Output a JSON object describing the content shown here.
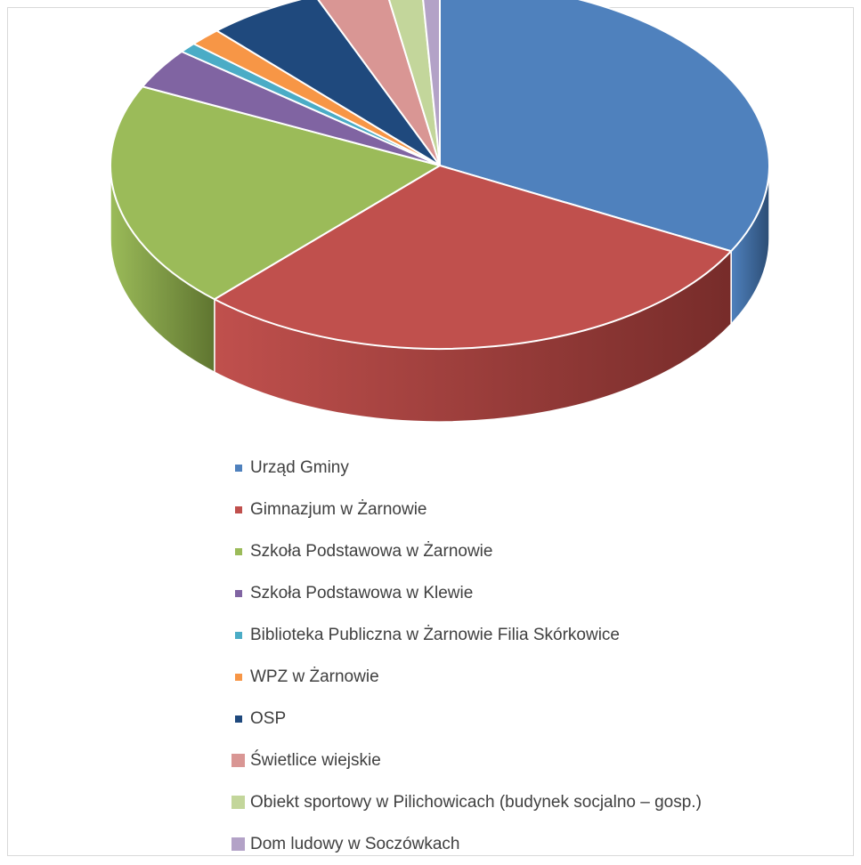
{
  "chart_data": {
    "type": "pie",
    "style": "3d",
    "title": "",
    "legend_position": "bottom",
    "slices": [
      {
        "label": "Urząd Gminy",
        "value": 32.9,
        "color": "#4F81BD",
        "side": "#2C4D75"
      },
      {
        "label": "Gimnazjum w Żarnowie",
        "value": 29.4,
        "color": "#C0504D",
        "side": "#772C2A"
      },
      {
        "label": "Szkoła Podstawowa w Żarnowie",
        "value": 20.2,
        "color": "#9BBB59",
        "side": "#5F7530"
      },
      {
        "label": "Szkoła Podstawowa w Klewie",
        "value": 3.6,
        "color": "#8064A2",
        "side": "#4D3B62"
      },
      {
        "label": "Biblioteka Publiczna w Żarnowie Filia Skórkowice",
        "value": 0.9,
        "color": "#4BACC6",
        "side": "#276A7C"
      },
      {
        "label": "WPZ w Żarnowie",
        "value": 1.6,
        "color": "#F79646",
        "side": "#B65708"
      },
      {
        "label": "OSP",
        "value": 5.7,
        "color": "#1F497D",
        "side": "#10253F"
      },
      {
        "label": "Świetlice wiejskie",
        "value": 3.5,
        "color": "#D99694",
        "side": "#8F4C4A"
      },
      {
        "label": "Obiekt sportowy w Pilichowicach (budynek socjalno – gosp.)",
        "value": 1.8,
        "color": "#C3D69B",
        "side": "#7B9440"
      },
      {
        "label": "Dom ludowy w Soczówkach",
        "value": 0.9,
        "color": "#B3A2C7",
        "side": "#6A5A80"
      }
    ]
  },
  "legend": {
    "items": [
      {
        "label": "Urząd Gminy",
        "color": "#4F81BD",
        "swatch": "small"
      },
      {
        "label": "Gimnazjum w Żarnowie",
        "color": "#C0504D",
        "swatch": "small"
      },
      {
        "label": "Szkoła Podstawowa w Żarnowie",
        "color": "#9BBB59",
        "swatch": "small"
      },
      {
        "label": "Szkoła Podstawowa w Klewie",
        "color": "#8064A2",
        "swatch": "small"
      },
      {
        "label": "Biblioteka Publiczna w Żarnowie Filia Skórkowice",
        "color": "#4BACC6",
        "swatch": "small"
      },
      {
        "label": "WPZ w Żarnowie",
        "color": "#F79646",
        "swatch": "small"
      },
      {
        "label": "OSP",
        "color": "#1F497D",
        "swatch": "small"
      },
      {
        "label": "Świetlice wiejskie",
        "color": "#D99694",
        "swatch": "big"
      },
      {
        "label": "Obiekt sportowy w Pilichowicach (budynek socjalno – gosp.)",
        "color": "#C3D69B",
        "swatch": "big"
      },
      {
        "label": "Dom ludowy w Soczówkach",
        "color": "#B3A2C7",
        "swatch": "big"
      }
    ]
  }
}
